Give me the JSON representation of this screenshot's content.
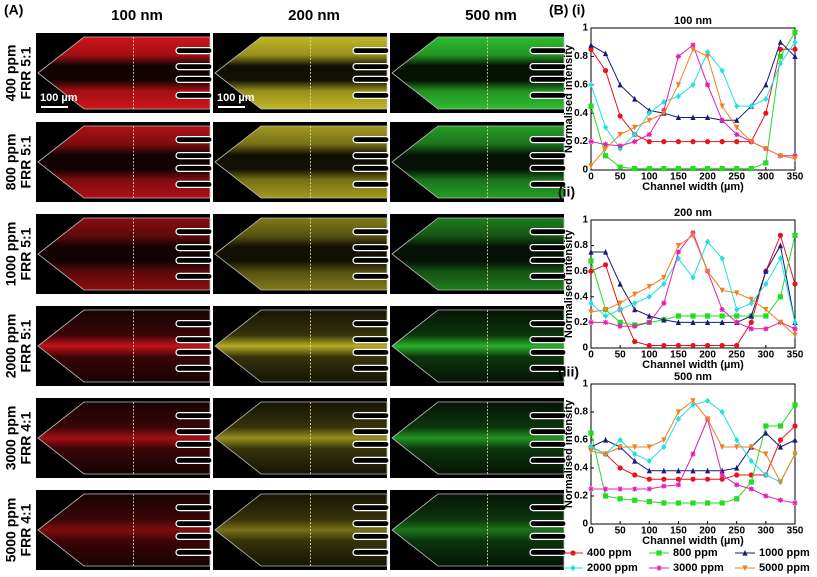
{
  "panels": {
    "a_label": "(A)",
    "b_label": "(B)"
  },
  "microscopy": {
    "columns": [
      "100 nm",
      "200 nm",
      "500 nm"
    ],
    "rows": [
      {
        "concentration": "400 ppm",
        "frr": "FRR 5:1"
      },
      {
        "concentration": "800 ppm",
        "frr": "FRR 5:1"
      },
      {
        "concentration": "1000 ppm",
        "frr": "FRR 5:1"
      },
      {
        "concentration": "2000 ppm",
        "frr": "FRR 5:1"
      },
      {
        "concentration": "3000 ppm",
        "frr": "FRR 4:1"
      },
      {
        "concentration": "5000 ppm",
        "frr": "FRR 4:1"
      }
    ],
    "scale_bar": "100 µm",
    "colors": [
      "#e8161c",
      "#d8cc2a",
      "#32d232"
    ]
  },
  "legend": {
    "entries": [
      {
        "name": "400 ppm",
        "color": "#e8141c",
        "marker": "circle"
      },
      {
        "name": "800 ppm",
        "color": "#22dd22",
        "marker": "square"
      },
      {
        "name": "1000 ppm",
        "color": "#1a1a78",
        "marker": "triangle"
      },
      {
        "name": "2000 ppm",
        "color": "#22e0e0",
        "marker": "diamond"
      },
      {
        "name": "3000 ppm",
        "color": "#e020b0",
        "marker": "star"
      },
      {
        "name": "5000 ppm",
        "color": "#f08020",
        "marker": "triangle-down"
      }
    ]
  },
  "chart_data": [
    {
      "type": "line",
      "label": "(i)",
      "title": "100 nm",
      "x_label": "Channel width (µm)",
      "y_label": "Normalised intensity",
      "x": [
        0,
        25,
        50,
        75,
        100,
        125,
        150,
        175,
        200,
        225,
        250,
        275,
        300,
        325,
        350
      ],
      "xlim": [
        0,
        350
      ],
      "xticks": [
        0,
        50,
        100,
        150,
        200,
        250,
        300,
        350
      ],
      "ylim": [
        0,
        1
      ],
      "yticks": [
        0,
        0.2,
        0.4,
        0.6,
        0.8,
        1
      ],
      "series": [
        {
          "values": [
            0.85,
            0.7,
            0.38,
            0.25,
            0.2,
            0.2,
            0.2,
            0.2,
            0.2,
            0.2,
            0.2,
            0.2,
            0.4,
            0.85,
            0.85
          ]
        },
        {
          "values": [
            0.45,
            0.1,
            0.02,
            0.01,
            0.01,
            0.01,
            0.01,
            0.01,
            0.01,
            0.01,
            0.01,
            0.01,
            0.05,
            0.8,
            0.97
          ]
        },
        {
          "values": [
            0.88,
            0.82,
            0.6,
            0.5,
            0.42,
            0.4,
            0.37,
            0.37,
            0.37,
            0.35,
            0.35,
            0.45,
            0.6,
            0.9,
            0.8
          ]
        },
        {
          "values": [
            0.6,
            0.3,
            0.15,
            0.25,
            0.4,
            0.48,
            0.52,
            0.6,
            0.83,
            0.7,
            0.45,
            0.45,
            0.5,
            0.75,
            0.9
          ]
        },
        {
          "values": [
            0.2,
            0.18,
            0.17,
            0.2,
            0.25,
            0.42,
            0.8,
            0.88,
            0.6,
            0.35,
            0.25,
            0.2,
            0.15,
            0.1,
            0.1
          ]
        },
        {
          "values": [
            0.03,
            0.15,
            0.25,
            0.3,
            0.35,
            0.4,
            0.6,
            0.85,
            0.8,
            0.45,
            0.3,
            0.2,
            0.15,
            0.1,
            0.08
          ]
        }
      ]
    },
    {
      "type": "line",
      "label": "(ii)",
      "title": "200 nm",
      "x_label": "Channel width (µm)",
      "y_label": "Normalised intensity",
      "x": [
        0,
        25,
        50,
        75,
        100,
        125,
        150,
        175,
        200,
        225,
        250,
        275,
        300,
        325,
        350
      ],
      "xlim": [
        0,
        350
      ],
      "xticks": [
        0,
        50,
        100,
        150,
        200,
        250,
        300,
        350
      ],
      "ylim": [
        0,
        1
      ],
      "yticks": [
        0,
        0.2,
        0.4,
        0.6,
        0.8,
        1
      ],
      "series": [
        {
          "values": [
            0.6,
            0.65,
            0.3,
            0.05,
            0.02,
            0.02,
            0.02,
            0.02,
            0.02,
            0.02,
            0.02,
            0.2,
            0.6,
            0.88,
            0.5
          ]
        },
        {
          "values": [
            0.68,
            0.3,
            0.2,
            0.18,
            0.2,
            0.22,
            0.25,
            0.25,
            0.25,
            0.25,
            0.25,
            0.25,
            0.25,
            0.4,
            0.88
          ]
        },
        {
          "values": [
            0.75,
            0.75,
            0.5,
            0.3,
            0.25,
            0.22,
            0.2,
            0.2,
            0.2,
            0.2,
            0.2,
            0.25,
            0.6,
            0.8,
            0.2
          ]
        },
        {
          "values": [
            0.35,
            0.25,
            0.3,
            0.35,
            0.4,
            0.5,
            0.7,
            0.55,
            0.83,
            0.7,
            0.3,
            0.35,
            0.5,
            0.7,
            0.2
          ]
        },
        {
          "values": [
            0.2,
            0.2,
            0.17,
            0.17,
            0.2,
            0.35,
            0.75,
            0.9,
            0.6,
            0.3,
            0.2,
            0.15,
            0.15,
            0.2,
            0.15
          ]
        },
        {
          "values": [
            0.28,
            0.3,
            0.35,
            0.42,
            0.48,
            0.55,
            0.8,
            0.88,
            0.6,
            0.45,
            0.43,
            0.38,
            0.3,
            0.2,
            0.1
          ]
        }
      ]
    },
    {
      "type": "line",
      "label": "(iii)",
      "title": "500 nm",
      "x_label": "Channel width (µm)",
      "y_label": "Normalised intensity",
      "x": [
        0,
        25,
        50,
        75,
        100,
        125,
        150,
        175,
        200,
        225,
        250,
        275,
        300,
        325,
        350
      ],
      "xlim": [
        0,
        350
      ],
      "xticks": [
        0,
        50,
        100,
        150,
        200,
        250,
        300,
        350
      ],
      "ylim": [
        0,
        1
      ],
      "yticks": [
        0,
        0.2,
        0.4,
        0.6,
        0.8,
        1
      ],
      "series": [
        {
          "values": [
            0.55,
            0.5,
            0.4,
            0.35,
            0.32,
            0.32,
            0.32,
            0.32,
            0.32,
            0.32,
            0.35,
            0.35,
            0.35,
            0.6,
            0.7
          ]
        },
        {
          "values": [
            0.65,
            0.2,
            0.18,
            0.17,
            0.16,
            0.15,
            0.15,
            0.15,
            0.15,
            0.15,
            0.18,
            0.3,
            0.7,
            0.7,
            0.85
          ]
        },
        {
          "values": [
            0.55,
            0.6,
            0.55,
            0.45,
            0.38,
            0.38,
            0.38,
            0.38,
            0.38,
            0.38,
            0.4,
            0.55,
            0.65,
            0.55,
            0.6
          ]
        },
        {
          "values": [
            0.55,
            0.5,
            0.6,
            0.5,
            0.45,
            0.55,
            0.75,
            0.85,
            0.88,
            0.8,
            0.6,
            0.45,
            0.35,
            0.3,
            0.5
          ]
        },
        {
          "values": [
            0.25,
            0.25,
            0.25,
            0.25,
            0.25,
            0.27,
            0.28,
            0.5,
            0.75,
            0.35,
            0.28,
            0.25,
            0.2,
            0.17,
            0.15
          ]
        },
        {
          "values": [
            0.52,
            0.5,
            0.55,
            0.55,
            0.55,
            0.6,
            0.8,
            0.88,
            0.75,
            0.55,
            0.55,
            0.55,
            0.5,
            0.3,
            0.5
          ]
        }
      ]
    }
  ]
}
